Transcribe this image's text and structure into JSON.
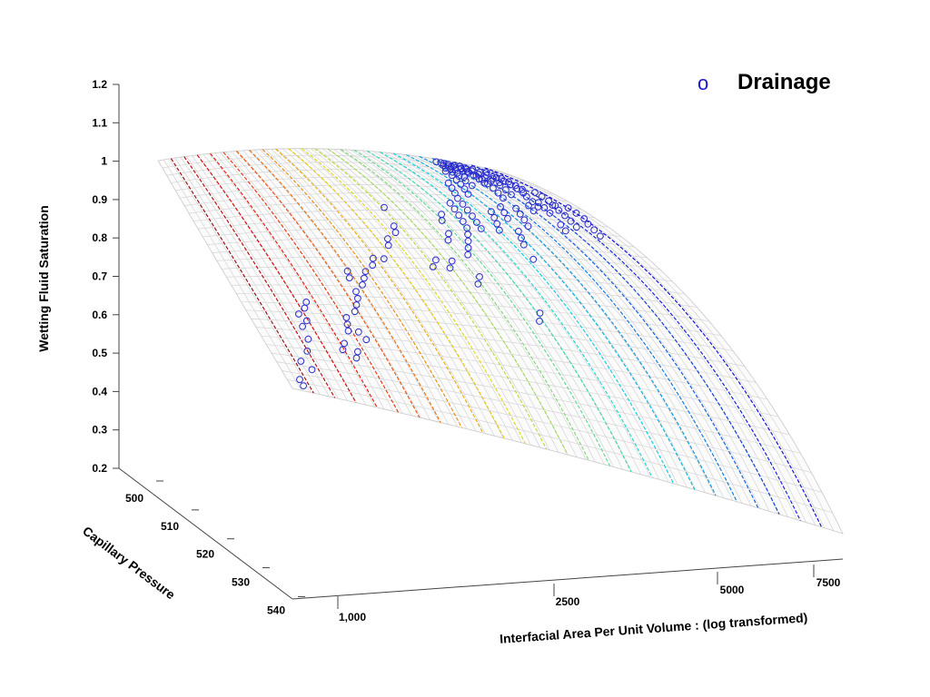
{
  "chart_data": {
    "type": "scatter",
    "subtype": "3d-surface-with-points",
    "zlabel": "Wetting Fluid Saturation",
    "ylabel": "Capillary Pressure",
    "xlabel": "Interfacial Area Per Unit Volume : (log transformed)",
    "zticks": [
      "0.2",
      "0.3",
      "0.4",
      "0.5",
      "0.6",
      "0.7",
      "0.8",
      "0.9",
      "1",
      "1.1",
      "1.2"
    ],
    "yticks": [
      "500",
      "510",
      "520",
      "530",
      "540"
    ],
    "xticks": [
      "1,000",
      "2500",
      "5000",
      "7500"
    ],
    "zlim": [
      0.2,
      1.2
    ],
    "ylim": [
      500,
      540
    ],
    "legend": [
      {
        "name": "Drainage",
        "marker": "o",
        "color": "#0000cc"
      }
    ],
    "legend_position": "top-right",
    "surface_colormap": "jet contours (red high saturation, blue low saturation)",
    "series": [
      {
        "name": "Drainage",
        "note": "points projected onto the fitted surface: [x interfacial area, y capillary pressure, z saturation]",
        "points": [
          [
            1000,
            500,
            0.86
          ],
          [
            1000,
            501,
            0.85
          ],
          [
            1080,
            503,
            0.88
          ],
          [
            1050,
            504,
            0.92
          ],
          [
            1110,
            506,
            0.86
          ],
          [
            1150,
            508,
            0.84
          ],
          [
            1160,
            510,
            0.82
          ],
          [
            1200,
            511,
            0.8
          ],
          [
            1180,
            512,
            0.79
          ],
          [
            1230,
            513,
            0.78
          ],
          [
            1260,
            514,
            0.76
          ],
          [
            1300,
            507,
            0.85
          ],
          [
            1330,
            508,
            0.83
          ],
          [
            1350,
            506,
            0.86
          ],
          [
            1380,
            507,
            0.84
          ],
          [
            1400,
            510,
            0.8
          ],
          [
            1420,
            511,
            0.78
          ],
          [
            1440,
            512,
            0.77
          ],
          [
            1460,
            510,
            0.79
          ],
          [
            1480,
            509,
            0.8
          ],
          [
            1520,
            513,
            0.76
          ],
          [
            1560,
            514,
            0.74
          ],
          [
            1600,
            515,
            0.72
          ],
          [
            1620,
            516,
            0.71
          ],
          [
            1640,
            518,
            0.7
          ],
          [
            1660,
            519,
            0.69
          ],
          [
            1700,
            517,
            0.71
          ],
          [
            1750,
            518,
            0.7
          ],
          [
            1800,
            519,
            0.69
          ],
          [
            1900,
            520,
            0.66
          ],
          [
            1950,
            521,
            0.65
          ],
          [
            2050,
            521,
            0.64
          ],
          [
            2200,
            523,
            0.62
          ],
          [
            2250,
            524,
            0.61
          ],
          [
            2400,
            525,
            0.59
          ],
          [
            2450,
            526,
            0.58
          ],
          [
            2550,
            529,
            0.55
          ],
          [
            2700,
            520,
            0.66
          ],
          [
            2800,
            521,
            0.65
          ],
          [
            2900,
            518,
            0.7
          ],
          [
            3000,
            519,
            0.69
          ],
          [
            3100,
            522,
            0.64
          ],
          [
            3200,
            523,
            0.63
          ],
          [
            3300,
            524,
            0.62
          ],
          [
            3400,
            525,
            0.61
          ],
          [
            3500,
            526,
            0.6
          ],
          [
            3550,
            527,
            0.59
          ],
          [
            3600,
            528,
            0.58
          ],
          [
            3650,
            529,
            0.57
          ],
          [
            3700,
            530,
            0.56
          ],
          [
            3750,
            526,
            0.6
          ],
          [
            3800,
            527,
            0.58
          ],
          [
            3850,
            528,
            0.57
          ],
          [
            3900,
            529,
            0.55
          ],
          [
            3950,
            530,
            0.54
          ],
          [
            4000,
            531,
            0.53
          ],
          [
            4100,
            532,
            0.52
          ],
          [
            4200,
            533,
            0.5
          ],
          [
            4300,
            534,
            0.49
          ],
          [
            4400,
            532,
            0.51
          ],
          [
            4500,
            533,
            0.5
          ],
          [
            4600,
            534,
            0.48
          ],
          [
            4700,
            535,
            0.46
          ],
          [
            4800,
            536,
            0.45
          ],
          [
            4850,
            537,
            0.43
          ],
          [
            4900,
            534,
            0.47
          ],
          [
            4950,
            535,
            0.45
          ],
          [
            5000,
            536,
            0.44
          ],
          [
            5050,
            537,
            0.42
          ],
          [
            5100,
            538,
            0.41
          ],
          [
            5150,
            536,
            0.43
          ],
          [
            5200,
            537,
            0.41
          ],
          [
            5250,
            538,
            0.4
          ],
          [
            5300,
            539,
            0.38
          ],
          [
            5350,
            540,
            0.37
          ],
          [
            5400,
            538,
            0.39
          ],
          [
            5450,
            539,
            0.37
          ],
          [
            5500,
            540,
            0.36
          ],
          [
            5550,
            539,
            0.36
          ],
          [
            5600,
            540,
            0.34
          ],
          [
            5650,
            538,
            0.37
          ],
          [
            5700,
            539,
            0.35
          ],
          [
            5750,
            540,
            0.33
          ],
          [
            5800,
            537,
            0.37
          ],
          [
            5850,
            538,
            0.35
          ],
          [
            5900,
            539,
            0.33
          ],
          [
            5950,
            540,
            0.32
          ],
          [
            6000,
            536,
            0.37
          ],
          [
            6100,
            537,
            0.35
          ],
          [
            6200,
            538,
            0.33
          ],
          [
            6300,
            539,
            0.31
          ],
          [
            6400,
            540,
            0.3
          ],
          [
            6500,
            534,
            0.38
          ],
          [
            6600,
            535,
            0.36
          ],
          [
            6700,
            536,
            0.34
          ],
          [
            6800,
            537,
            0.32
          ],
          [
            6900,
            538,
            0.3
          ],
          [
            7000,
            532,
            0.38
          ],
          [
            7100,
            533,
            0.36
          ],
          [
            7200,
            534,
            0.33
          ],
          [
            7300,
            535,
            0.31
          ],
          [
            5300,
            532,
            0.46
          ],
          [
            5400,
            533,
            0.45
          ],
          [
            5500,
            534,
            0.44
          ],
          [
            5600,
            535,
            0.43
          ],
          [
            5700,
            536,
            0.42
          ],
          [
            5800,
            533,
            0.44
          ],
          [
            5900,
            534,
            0.43
          ],
          [
            6000,
            535,
            0.42
          ],
          [
            6100,
            531,
            0.46
          ],
          [
            6200,
            532,
            0.44
          ],
          [
            6300,
            533,
            0.43
          ],
          [
            4600,
            528,
            0.56
          ],
          [
            4700,
            529,
            0.55
          ],
          [
            4800,
            530,
            0.54
          ],
          [
            4900,
            527,
            0.58
          ],
          [
            5000,
            528,
            0.57
          ],
          [
            5100,
            529,
            0.55
          ],
          [
            5200,
            530,
            0.53
          ],
          [
            6500,
            528,
            0.47
          ],
          [
            6600,
            529,
            0.45
          ],
          [
            6700,
            530,
            0.43
          ],
          [
            6800,
            531,
            0.41
          ],
          [
            6900,
            532,
            0.39
          ],
          [
            7000,
            527,
            0.46
          ],
          [
            7100,
            528,
            0.44
          ],
          [
            7200,
            529,
            0.42
          ],
          [
            3400,
            514,
            0.74
          ],
          [
            3500,
            515,
            0.73
          ],
          [
            5900,
            527,
            0.52
          ],
          [
            6000,
            528,
            0.5
          ],
          [
            6200,
            530,
            0.47
          ],
          [
            6300,
            531,
            0.45
          ],
          [
            6400,
            532,
            0.43
          ],
          [
            5700,
            530,
            0.49
          ],
          [
            5800,
            531,
            0.47
          ],
          [
            4300,
            524,
            0.62
          ],
          [
            4400,
            525,
            0.61
          ],
          [
            4500,
            526,
            0.6
          ],
          [
            4200,
            522,
            0.64
          ],
          [
            2500,
            520,
            0.68
          ],
          [
            2600,
            521,
            0.67
          ],
          [
            3000,
            524,
            0.62
          ],
          [
            3100,
            525,
            0.61
          ],
          [
            3200,
            527,
            0.59
          ],
          [
            3300,
            528,
            0.58
          ],
          [
            4100,
            526,
            0.58
          ],
          [
            4200,
            527,
            0.57
          ],
          [
            4300,
            528,
            0.56
          ],
          [
            4400,
            529,
            0.55
          ],
          [
            5500,
            535,
            0.44
          ],
          [
            5600,
            536,
            0.43
          ],
          [
            5700,
            537,
            0.41
          ],
          [
            5800,
            538,
            0.39
          ],
          [
            5900,
            539,
            0.37
          ],
          [
            6000,
            540,
            0.35
          ],
          [
            6100,
            539,
            0.36
          ],
          [
            6200,
            540,
            0.34
          ],
          [
            6300,
            536,
            0.38
          ],
          [
            6400,
            537,
            0.36
          ],
          [
            6500,
            538,
            0.34
          ],
          [
            6600,
            539,
            0.32
          ],
          [
            6700,
            540,
            0.31
          ],
          [
            6800,
            535,
            0.37
          ],
          [
            6900,
            536,
            0.35
          ],
          [
            7000,
            537,
            0.33
          ],
          [
            7100,
            538,
            0.31
          ],
          [
            7200,
            539,
            0.3
          ],
          [
            7300,
            540,
            0.29
          ],
          [
            7400,
            530,
            0.4
          ],
          [
            7450,
            531,
            0.38
          ],
          [
            7500,
            532,
            0.36
          ]
        ]
      }
    ]
  }
}
